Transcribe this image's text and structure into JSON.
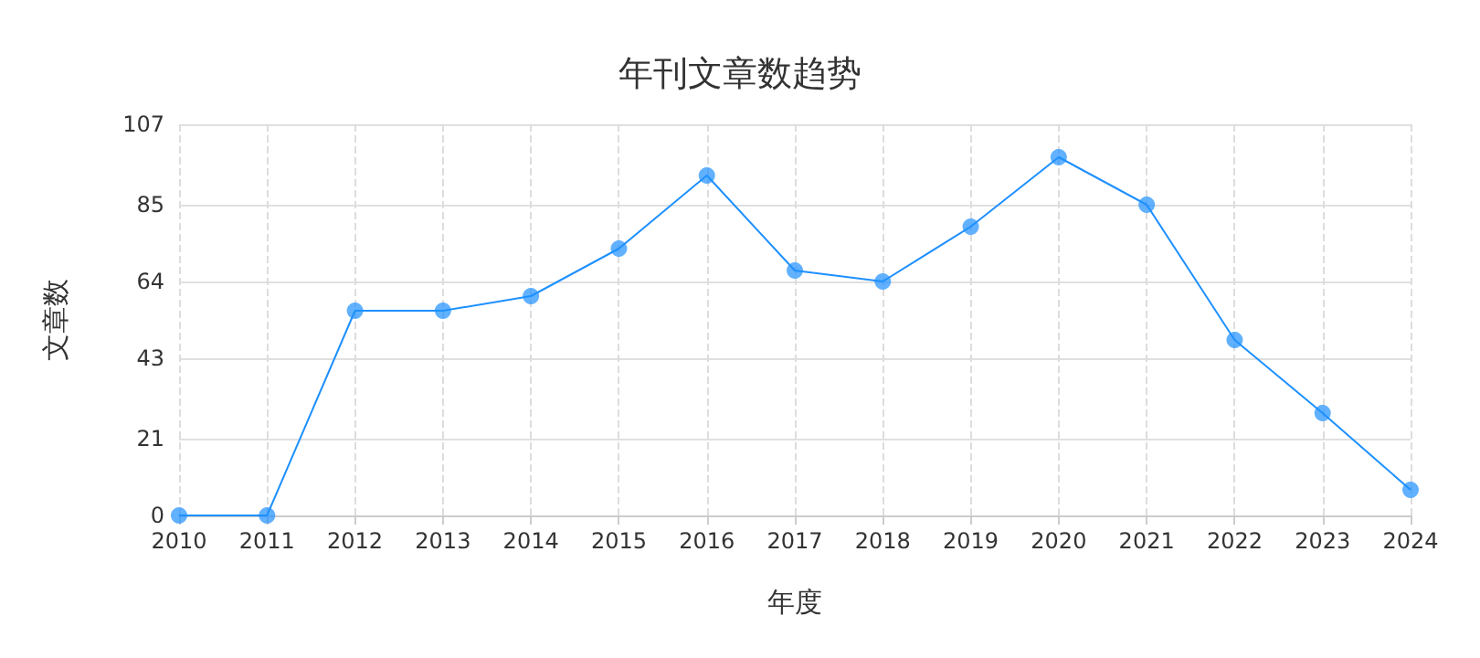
{
  "chart_data": {
    "type": "line",
    "title": "年刊文章数趋势",
    "xlabel": "年度",
    "ylabel": "文章数",
    "categories": [
      "2010",
      "2011",
      "2012",
      "2013",
      "2014",
      "2015",
      "2016",
      "2017",
      "2018",
      "2019",
      "2020",
      "2021",
      "2022",
      "2023",
      "2024"
    ],
    "series": [
      {
        "color": "#1e90ff",
        "values": [
          0,
          0,
          56,
          56,
          60,
          73,
          93,
          67,
          64,
          79,
          98,
          85,
          48,
          28,
          7
        ]
      }
    ],
    "ylim": [
      0,
      107
    ],
    "yticks": [
      0,
      21,
      43,
      64,
      85,
      107
    ],
    "grid": true,
    "marker": "circle",
    "line_style": "solid"
  }
}
